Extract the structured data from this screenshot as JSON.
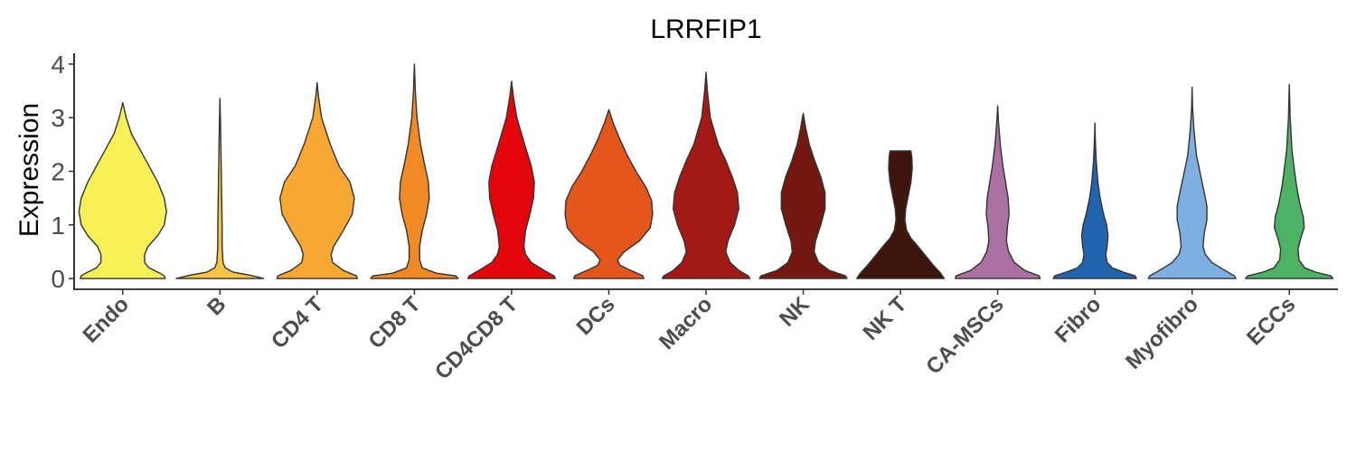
{
  "chart_data": {
    "type": "violin",
    "title": "LRRFIP1",
    "ylabel": "Expression",
    "xlabel": "",
    "ylim": [
      -0.2,
      4.2
    ],
    "yticks": [
      0,
      1,
      2,
      3,
      4
    ],
    "grid": false,
    "legend": "none",
    "categories": [
      "Endo",
      "B",
      "CD4 T",
      "CD8 T",
      "CD4CD8 T",
      "DCs",
      "Macro",
      "NK",
      "NK T",
      "CA-MSCs",
      "Fibro",
      "Myofibro",
      "ECCs"
    ],
    "series": [
      {
        "category": "Endo",
        "color": "#F7F057",
        "max": 3.28,
        "profile": [
          [
            0.0,
            0.97
          ],
          [
            0.05,
            0.95
          ],
          [
            0.1,
            0.85
          ],
          [
            0.2,
            0.6
          ],
          [
            0.3,
            0.5
          ],
          [
            0.45,
            0.5
          ],
          [
            0.6,
            0.58
          ],
          [
            0.8,
            0.8
          ],
          [
            1.0,
            0.95
          ],
          [
            1.25,
            1.0
          ],
          [
            1.5,
            0.95
          ],
          [
            1.8,
            0.8
          ],
          [
            2.1,
            0.6
          ],
          [
            2.4,
            0.4
          ],
          [
            2.7,
            0.2
          ],
          [
            3.0,
            0.08
          ],
          [
            3.28,
            0.0
          ]
        ]
      },
      {
        "category": "B",
        "color": "#F6C445",
        "max": 3.36,
        "profile": [
          [
            0.0,
            1.0
          ],
          [
            0.06,
            0.7
          ],
          [
            0.12,
            0.3
          ],
          [
            0.2,
            0.12
          ],
          [
            0.3,
            0.07
          ],
          [
            0.6,
            0.05
          ],
          [
            1.0,
            0.05
          ],
          [
            1.5,
            0.04
          ],
          [
            2.0,
            0.03
          ],
          [
            2.5,
            0.02
          ],
          [
            3.0,
            0.01
          ],
          [
            3.36,
            0.0
          ]
        ]
      },
      {
        "category": "CD4 T",
        "color": "#F6A833",
        "max": 3.65,
        "profile": [
          [
            0.0,
            0.92
          ],
          [
            0.05,
            0.9
          ],
          [
            0.15,
            0.6
          ],
          [
            0.3,
            0.35
          ],
          [
            0.45,
            0.32
          ],
          [
            0.6,
            0.38
          ],
          [
            0.9,
            0.6
          ],
          [
            1.2,
            0.8
          ],
          [
            1.5,
            0.85
          ],
          [
            1.8,
            0.75
          ],
          [
            2.1,
            0.5
          ],
          [
            2.5,
            0.3
          ],
          [
            3.0,
            0.1
          ],
          [
            3.4,
            0.03
          ],
          [
            3.65,
            0.0
          ]
        ]
      },
      {
        "category": "CD8 T",
        "color": "#F18A24",
        "max": 4.0,
        "profile": [
          [
            0.0,
            1.0
          ],
          [
            0.05,
            0.95
          ],
          [
            0.1,
            0.5
          ],
          [
            0.2,
            0.18
          ],
          [
            0.35,
            0.12
          ],
          [
            0.6,
            0.12
          ],
          [
            0.9,
            0.18
          ],
          [
            1.2,
            0.28
          ],
          [
            1.5,
            0.34
          ],
          [
            1.8,
            0.32
          ],
          [
            2.1,
            0.24
          ],
          [
            2.5,
            0.14
          ],
          [
            3.0,
            0.06
          ],
          [
            3.5,
            0.02
          ],
          [
            4.0,
            0.0
          ]
        ]
      },
      {
        "category": "CD4CD8 T",
        "color": "#E2060C",
        "max": 3.68,
        "profile": [
          [
            0.0,
            1.0
          ],
          [
            0.05,
            0.97
          ],
          [
            0.15,
            0.75
          ],
          [
            0.3,
            0.45
          ],
          [
            0.45,
            0.32
          ],
          [
            0.6,
            0.28
          ],
          [
            0.9,
            0.32
          ],
          [
            1.2,
            0.42
          ],
          [
            1.5,
            0.5
          ],
          [
            1.8,
            0.52
          ],
          [
            2.1,
            0.45
          ],
          [
            2.5,
            0.3
          ],
          [
            3.0,
            0.12
          ],
          [
            3.4,
            0.04
          ],
          [
            3.68,
            0.0
          ]
        ]
      },
      {
        "category": "DCs",
        "color": "#E5561A",
        "max": 3.15,
        "profile": [
          [
            0.0,
            0.8
          ],
          [
            0.05,
            0.78
          ],
          [
            0.15,
            0.5
          ],
          [
            0.25,
            0.25
          ],
          [
            0.35,
            0.2
          ],
          [
            0.5,
            0.35
          ],
          [
            0.7,
            0.7
          ],
          [
            0.95,
            0.95
          ],
          [
            1.2,
            1.0
          ],
          [
            1.45,
            0.98
          ],
          [
            1.7,
            0.85
          ],
          [
            2.0,
            0.62
          ],
          [
            2.3,
            0.42
          ],
          [
            2.6,
            0.25
          ],
          [
            2.9,
            0.1
          ],
          [
            3.15,
            0.0
          ]
        ]
      },
      {
        "category": "Macro",
        "color": "#A31915",
        "max": 3.85,
        "profile": [
          [
            0.0,
            1.0
          ],
          [
            0.05,
            0.97
          ],
          [
            0.15,
            0.75
          ],
          [
            0.3,
            0.55
          ],
          [
            0.5,
            0.45
          ],
          [
            0.7,
            0.5
          ],
          [
            1.0,
            0.65
          ],
          [
            1.3,
            0.75
          ],
          [
            1.6,
            0.72
          ],
          [
            1.9,
            0.6
          ],
          [
            2.2,
            0.45
          ],
          [
            2.5,
            0.28
          ],
          [
            3.0,
            0.1
          ],
          [
            3.5,
            0.03
          ],
          [
            3.85,
            0.0
          ]
        ]
      },
      {
        "category": "NK",
        "color": "#741912",
        "max": 3.08,
        "profile": [
          [
            0.0,
            1.0
          ],
          [
            0.05,
            0.97
          ],
          [
            0.15,
            0.6
          ],
          [
            0.3,
            0.35
          ],
          [
            0.5,
            0.25
          ],
          [
            0.7,
            0.28
          ],
          [
            1.0,
            0.4
          ],
          [
            1.3,
            0.5
          ],
          [
            1.6,
            0.5
          ],
          [
            1.9,
            0.4
          ],
          [
            2.2,
            0.26
          ],
          [
            2.5,
            0.14
          ],
          [
            2.8,
            0.06
          ],
          [
            3.08,
            0.0
          ]
        ]
      },
      {
        "category": "NK T",
        "color": "#3E150C",
        "max": 2.38,
        "profile": [
          [
            0.0,
            1.0
          ],
          [
            0.1,
            0.92
          ],
          [
            0.25,
            0.75
          ],
          [
            0.45,
            0.55
          ],
          [
            0.6,
            0.4
          ],
          [
            0.75,
            0.24
          ],
          [
            0.9,
            0.14
          ],
          [
            1.1,
            0.1
          ],
          [
            1.3,
            0.12
          ],
          [
            1.55,
            0.18
          ],
          [
            1.8,
            0.24
          ],
          [
            2.05,
            0.27
          ],
          [
            2.25,
            0.26
          ],
          [
            2.38,
            0.24
          ]
        ]
      },
      {
        "category": "CA-MSCs",
        "color": "#AC71A3",
        "max": 3.22,
        "profile": [
          [
            0.0,
            0.97
          ],
          [
            0.05,
            0.95
          ],
          [
            0.15,
            0.62
          ],
          [
            0.3,
            0.38
          ],
          [
            0.5,
            0.25
          ],
          [
            0.7,
            0.2
          ],
          [
            0.95,
            0.22
          ],
          [
            1.2,
            0.26
          ],
          [
            1.5,
            0.24
          ],
          [
            1.8,
            0.18
          ],
          [
            2.1,
            0.12
          ],
          [
            2.5,
            0.06
          ],
          [
            2.9,
            0.02
          ],
          [
            3.22,
            0.0
          ]
        ]
      },
      {
        "category": "Fibro",
        "color": "#1F64AD",
        "max": 2.9,
        "profile": [
          [
            0.0,
            0.95
          ],
          [
            0.05,
            0.92
          ],
          [
            0.12,
            0.65
          ],
          [
            0.2,
            0.4
          ],
          [
            0.3,
            0.28
          ],
          [
            0.45,
            0.25
          ],
          [
            0.6,
            0.28
          ],
          [
            0.8,
            0.3
          ],
          [
            1.0,
            0.27
          ],
          [
            1.2,
            0.2
          ],
          [
            1.5,
            0.12
          ],
          [
            1.8,
            0.07
          ],
          [
            2.2,
            0.03
          ],
          [
            2.6,
            0.01
          ],
          [
            2.9,
            0.0
          ]
        ]
      },
      {
        "category": "Myofibro",
        "color": "#7DB0E0",
        "max": 3.57,
        "profile": [
          [
            0.0,
            1.0
          ],
          [
            0.05,
            0.97
          ],
          [
            0.15,
            0.75
          ],
          [
            0.3,
            0.45
          ],
          [
            0.45,
            0.3
          ],
          [
            0.6,
            0.25
          ],
          [
            0.85,
            0.28
          ],
          [
            1.1,
            0.34
          ],
          [
            1.35,
            0.34
          ],
          [
            1.6,
            0.28
          ],
          [
            1.9,
            0.2
          ],
          [
            2.3,
            0.1
          ],
          [
            2.8,
            0.04
          ],
          [
            3.2,
            0.01
          ],
          [
            3.57,
            0.0
          ]
        ]
      },
      {
        "category": "ECCs",
        "color": "#4DB264",
        "max": 3.62,
        "profile": [
          [
            0.0,
            1.0
          ],
          [
            0.05,
            0.95
          ],
          [
            0.12,
            0.6
          ],
          [
            0.2,
            0.35
          ],
          [
            0.35,
            0.22
          ],
          [
            0.55,
            0.2
          ],
          [
            0.75,
            0.26
          ],
          [
            0.95,
            0.34
          ],
          [
            1.15,
            0.32
          ],
          [
            1.4,
            0.24
          ],
          [
            1.7,
            0.17
          ],
          [
            2.0,
            0.12
          ],
          [
            2.4,
            0.06
          ],
          [
            3.0,
            0.02
          ],
          [
            3.62,
            0.0
          ]
        ]
      }
    ]
  }
}
